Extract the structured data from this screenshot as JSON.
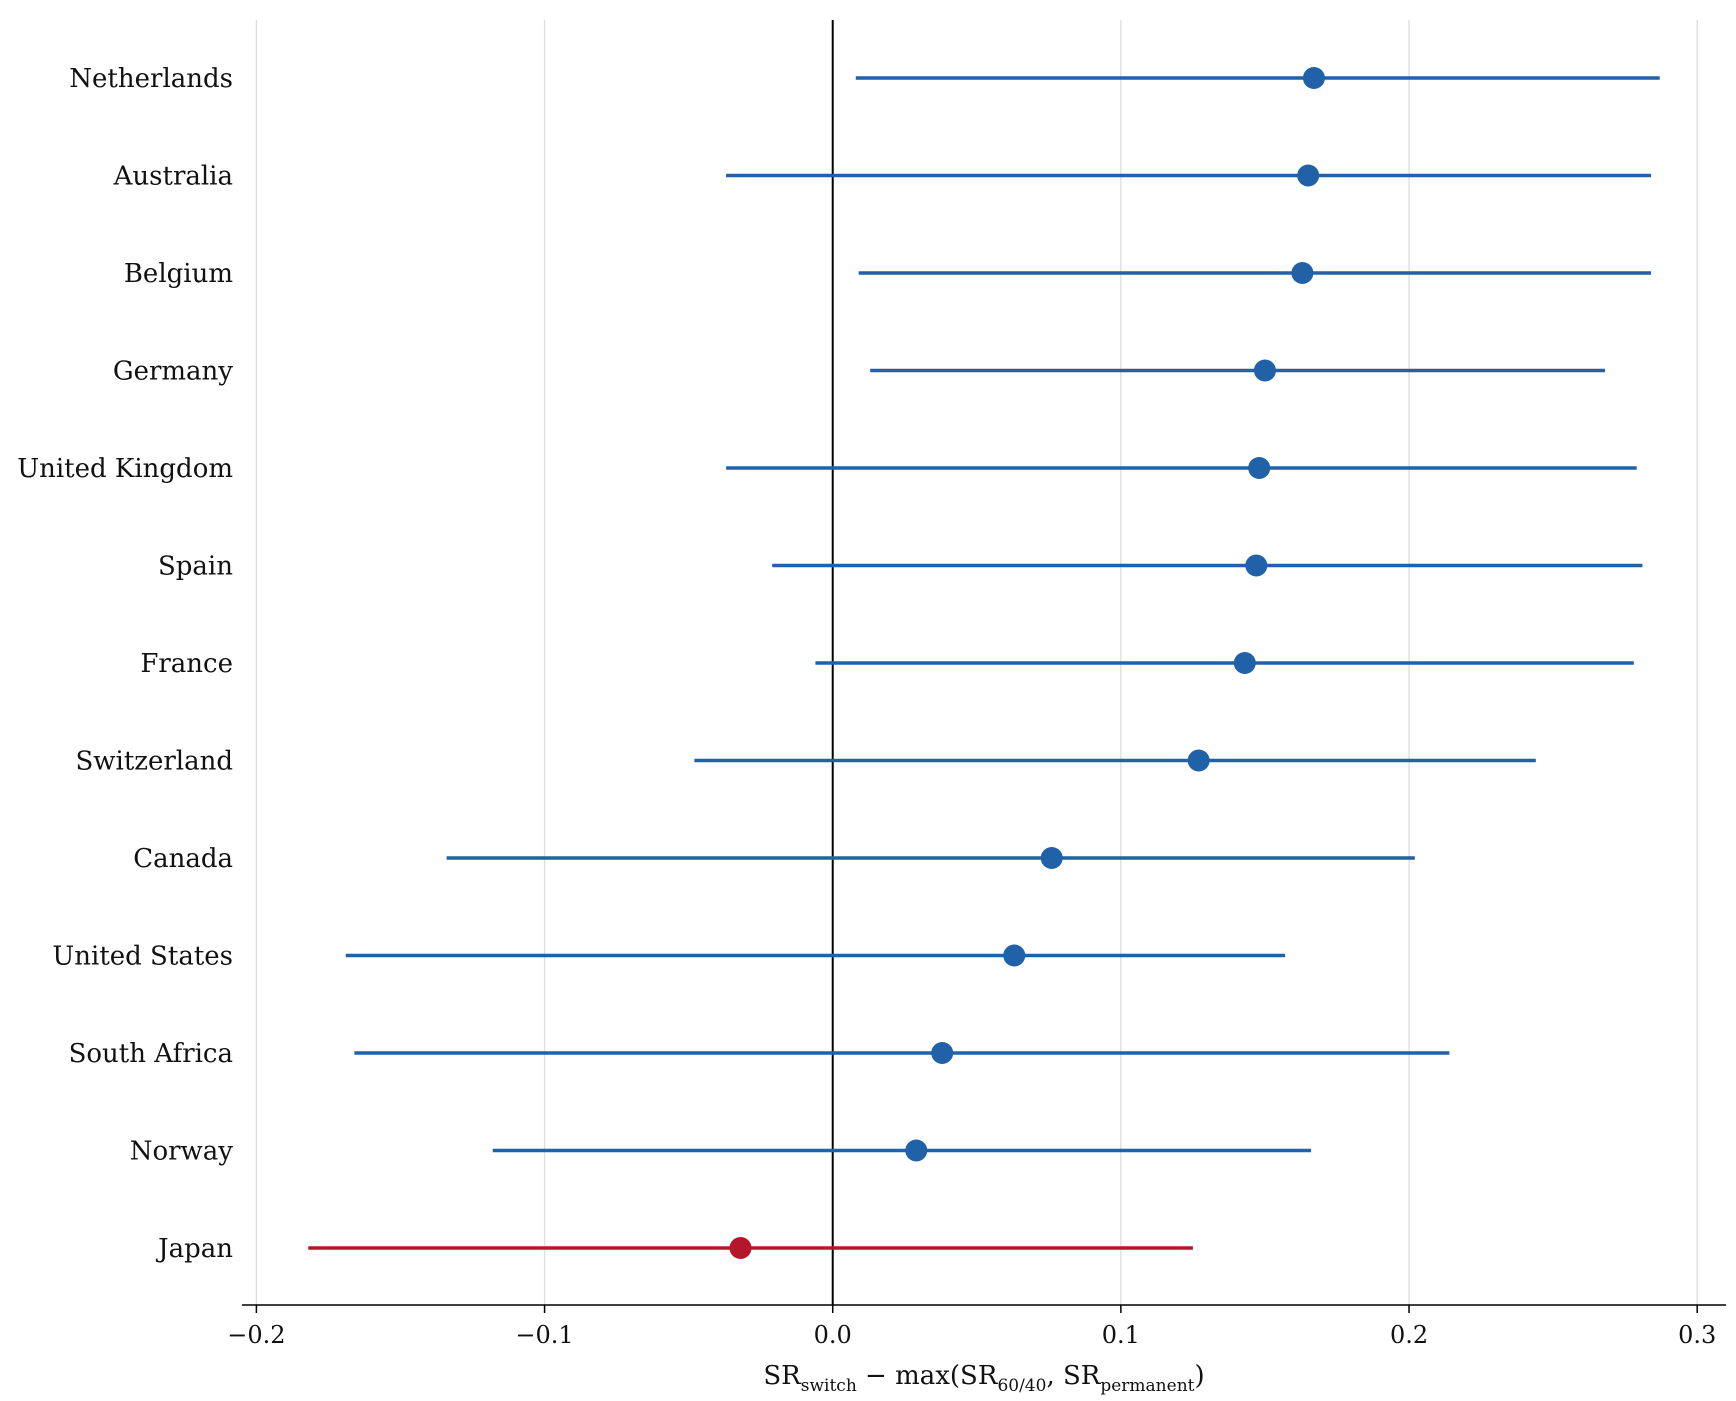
{
  "chart_data": {
    "type": "scatter",
    "subtype": "forest-plot",
    "title": "",
    "xlabel": {
      "base": "SR",
      "switch_sub": "switch",
      "minus": " − max(SR",
      "sub_6040": "60/40",
      "comma_sr": ", SR",
      "sub_perm": "permanent",
      "close": ")"
    },
    "ylabel": "",
    "xlim": [
      -0.205,
      0.31
    ],
    "xticks": [
      -0.2,
      -0.1,
      0.0,
      0.1,
      0.2,
      0.3
    ],
    "xtick_labels": [
      "−0.2",
      "−0.1",
      "0.0",
      "0.1",
      "0.2",
      "0.3"
    ],
    "grid": "vertical",
    "reference_line_x": 0.0,
    "colors": {
      "positive": "#2161a8",
      "negative": "#b5162b",
      "grid": "#dddddd",
      "axis": "#000000"
    },
    "countries": [
      {
        "name": "Netherlands",
        "estimate": 0.167,
        "ci_low": 0.008,
        "ci_high": 0.287
      },
      {
        "name": "Australia",
        "estimate": 0.165,
        "ci_low": -0.037,
        "ci_high": 0.284
      },
      {
        "name": "Belgium",
        "estimate": 0.163,
        "ci_low": 0.009,
        "ci_high": 0.284
      },
      {
        "name": "Germany",
        "estimate": 0.15,
        "ci_low": 0.013,
        "ci_high": 0.268
      },
      {
        "name": "United Kingdom",
        "estimate": 0.148,
        "ci_low": -0.037,
        "ci_high": 0.279
      },
      {
        "name": "Spain",
        "estimate": 0.147,
        "ci_low": -0.021,
        "ci_high": 0.281
      },
      {
        "name": "France",
        "estimate": 0.143,
        "ci_low": -0.006,
        "ci_high": 0.278
      },
      {
        "name": "Switzerland",
        "estimate": 0.127,
        "ci_low": -0.048,
        "ci_high": 0.244
      },
      {
        "name": "Canada",
        "estimate": 0.076,
        "ci_low": -0.134,
        "ci_high": 0.202
      },
      {
        "name": "United States",
        "estimate": 0.063,
        "ci_low": -0.169,
        "ci_high": 0.157
      },
      {
        "name": "South Africa",
        "estimate": 0.038,
        "ci_low": -0.166,
        "ci_high": 0.214
      },
      {
        "name": "Norway",
        "estimate": 0.029,
        "ci_low": -0.118,
        "ci_high": 0.166
      },
      {
        "name": "Japan",
        "estimate": -0.032,
        "ci_low": -0.182,
        "ci_high": 0.125
      }
    ]
  }
}
